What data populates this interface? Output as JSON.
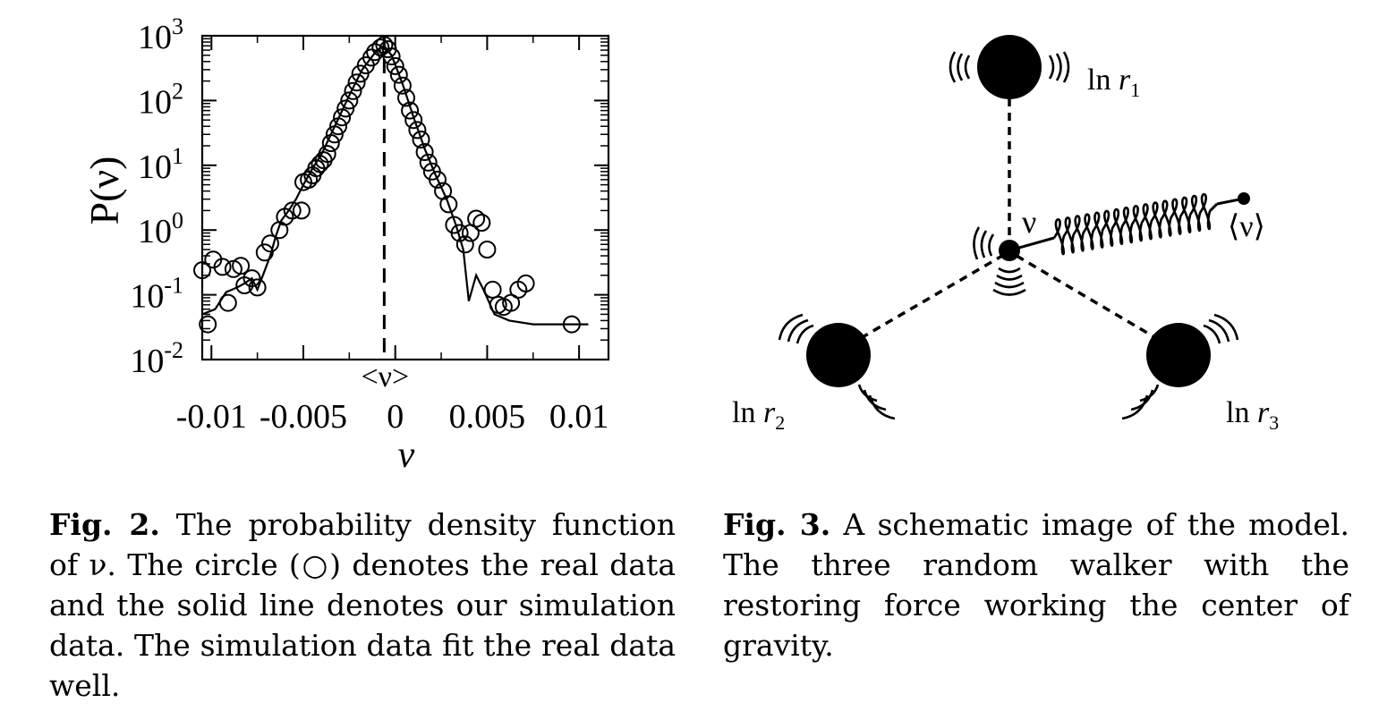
{
  "figure2": {
    "caption_label": "Fig. 2.",
    "caption_text": " The probability density function of ν. The circle (○) denotes the real data and the solid line denotes our simulation data. The simulation data fit the real data well.",
    "chart_data": {
      "type": "scatter",
      "ylabel": "P(ν)",
      "xlabel": "ν",
      "yscale": "log",
      "xlim": [
        -0.0105,
        0.0116
      ],
      "ylim": [
        0.01,
        1000
      ],
      "x_ticks": [
        -0.01,
        -0.005,
        0,
        0.005,
        0.01
      ],
      "x_tick_labels": [
        "-0.01",
        "-0.005",
        "0",
        "0.005",
        "0.01"
      ],
      "y_ticks": [
        0.01,
        0.1,
        1,
        10,
        100,
        1000
      ],
      "y_tick_labels": [
        {
          "base": "10",
          "exp": "-2"
        },
        {
          "base": "10",
          "exp": "-1"
        },
        {
          "base": "10",
          "exp": "0"
        },
        {
          "base": "10",
          "exp": "1"
        },
        {
          "base": "10",
          "exp": "2"
        },
        {
          "base": "10",
          "exp": "3"
        }
      ],
      "mean_marker": {
        "x": -0.0006,
        "label": "<ν>"
      },
      "series": [
        {
          "name": "real data",
          "style": "circles",
          "points": [
            [
              -0.0105,
              0.24
            ],
            [
              -0.0102,
              0.035
            ],
            [
              -0.0099,
              0.35
            ],
            [
              -0.0094,
              0.27
            ],
            [
              -0.0091,
              0.075
            ],
            [
              -0.0088,
              0.25
            ],
            [
              -0.0084,
              0.28
            ],
            [
              -0.0082,
              0.14
            ],
            [
              -0.0078,
              0.18
            ],
            [
              -0.0075,
              0.13
            ],
            [
              -0.0071,
              0.45
            ],
            [
              -0.0068,
              0.62
            ],
            [
              -0.0063,
              1.0
            ],
            [
              -0.006,
              1.6
            ],
            [
              -0.0056,
              2.0
            ],
            [
              -0.0051,
              2.0
            ],
            [
              -0.005,
              5.5
            ],
            [
              -0.0047,
              6.0
            ],
            [
              -0.0045,
              7.0
            ],
            [
              -0.0043,
              9.0
            ],
            [
              -0.0041,
              10.5
            ],
            [
              -0.0039,
              12.0
            ],
            [
              -0.0037,
              15.0
            ],
            [
              -0.0035,
              22.0
            ],
            [
              -0.0033,
              30.0
            ],
            [
              -0.0031,
              40.0
            ],
            [
              -0.0029,
              55.0
            ],
            [
              -0.0027,
              75.0
            ],
            [
              -0.0025,
              100.0
            ],
            [
              -0.0023,
              140.0
            ],
            [
              -0.0021,
              190.0
            ],
            [
              -0.0019,
              260.0
            ],
            [
              -0.0016,
              350.0
            ],
            [
              -0.0013,
              460.0
            ],
            [
              -0.0011,
              560.0
            ],
            [
              -0.0008,
              660.0
            ],
            [
              -0.0006,
              720.0
            ],
            [
              -0.0004,
              620.0
            ],
            [
              -0.0002,
              480.0
            ],
            [
              0.0,
              340.0
            ],
            [
              0.0002,
              250.0
            ],
            [
              0.0004,
              170.0
            ],
            [
              0.0006,
              110.0
            ],
            [
              0.0008,
              70.0
            ],
            [
              0.001,
              50.0
            ],
            [
              0.0012,
              35.0
            ],
            [
              0.0014,
              25.0
            ],
            [
              0.0016,
              16.0
            ],
            [
              0.0018,
              11.0
            ],
            [
              0.002,
              8.0
            ],
            [
              0.0023,
              6.0
            ],
            [
              0.0026,
              4.0
            ],
            [
              0.0029,
              2.5
            ],
            [
              0.0032,
              1.2
            ],
            [
              0.0035,
              0.9
            ],
            [
              0.0038,
              0.6
            ],
            [
              0.0041,
              0.9
            ],
            [
              0.0044,
              1.5
            ],
            [
              0.0047,
              1.3
            ],
            [
              0.005,
              0.5
            ],
            [
              0.0053,
              0.12
            ],
            [
              0.0056,
              0.07
            ],
            [
              0.0059,
              0.065
            ],
            [
              0.0063,
              0.075
            ],
            [
              0.0067,
              0.12
            ],
            [
              0.0071,
              0.15
            ],
            [
              0.0096,
              0.035
            ]
          ]
        },
        {
          "name": "simulation data",
          "style": "line",
          "points": [
            [
              -0.0105,
              0.05
            ],
            [
              -0.0098,
              0.06
            ],
            [
              -0.0092,
              0.11
            ],
            [
              -0.0086,
              0.13
            ],
            [
              -0.0082,
              0.15
            ],
            [
              -0.0078,
              0.18
            ],
            [
              -0.0075,
              0.12
            ],
            [
              -0.0072,
              0.2
            ],
            [
              -0.0068,
              0.4
            ],
            [
              -0.0065,
              0.8
            ],
            [
              -0.0062,
              1.4
            ],
            [
              -0.0058,
              2.0
            ],
            [
              -0.0054,
              3.0
            ],
            [
              -0.005,
              5.0
            ],
            [
              -0.0045,
              9.0
            ],
            [
              -0.004,
              15.0
            ],
            [
              -0.0035,
              30.0
            ],
            [
              -0.003,
              60.0
            ],
            [
              -0.0025,
              120.0
            ],
            [
              -0.0018,
              300.0
            ],
            [
              -0.001,
              600.0
            ],
            [
              -0.0006,
              700.0
            ],
            [
              -0.0002,
              500.0
            ],
            [
              0.0004,
              180.0
            ],
            [
              0.001,
              55.0
            ],
            [
              0.0016,
              18.0
            ],
            [
              0.0022,
              7.0
            ],
            [
              0.0028,
              3.0
            ],
            [
              0.0033,
              1.2
            ],
            [
              0.0037,
              0.5
            ],
            [
              0.004,
              0.08
            ],
            [
              0.0044,
              0.2
            ],
            [
              0.0048,
              0.12
            ],
            [
              0.0054,
              0.05
            ],
            [
              0.0062,
              0.04
            ],
            [
              0.0075,
              0.035
            ],
            [
              0.0105,
              0.035
            ]
          ]
        }
      ]
    }
  },
  "figure3": {
    "caption_label": "Fig. 3.",
    "caption_text": " A schematic image of the model. The three random walker with the restoring force working the center of gravity.",
    "nodes": {
      "r1": {
        "label_prefix": "ln ",
        "var": "r",
        "sub": "1"
      },
      "r2": {
        "label_prefix": "ln ",
        "var": "r",
        "sub": "2"
      },
      "r3": {
        "label_prefix": "ln ",
        "var": "r",
        "sub": "3"
      },
      "center": {
        "label": "ν"
      },
      "anchor": {
        "label": "⟨ν⟩"
      }
    }
  }
}
